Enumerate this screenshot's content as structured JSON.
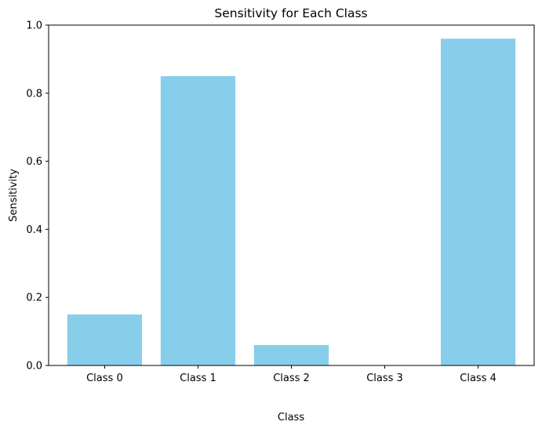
{
  "chart_data": {
    "type": "bar",
    "title": "Sensitivity for Each Class",
    "xlabel": "Class",
    "ylabel": "Sensitivity",
    "categories": [
      "Class 0",
      "Class 1",
      "Class 2",
      "Class 3",
      "Class 4"
    ],
    "values": [
      0.15,
      0.85,
      0.06,
      0.0,
      0.96
    ],
    "ylim": [
      0,
      1.0
    ],
    "yticks": [
      "0.0",
      "0.2",
      "0.4",
      "0.6",
      "0.8",
      "1.0"
    ],
    "grid": false,
    "legend": "none",
    "bar_color": "#87ceeb"
  }
}
